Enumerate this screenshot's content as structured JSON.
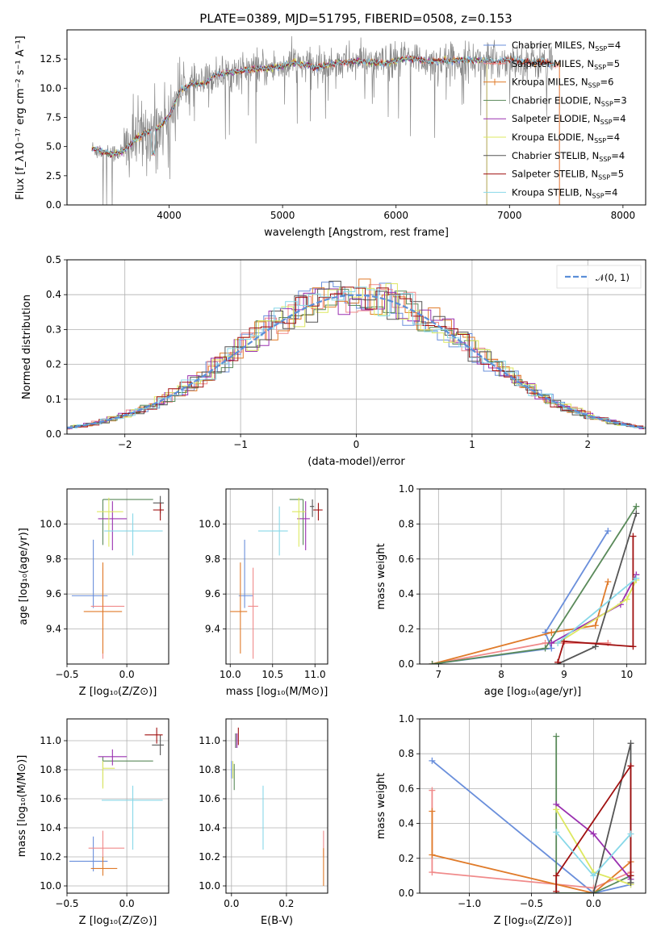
{
  "title": "PLATE=0389, MJD=51795, FIBERID=0508, z=0.153",
  "colors": {
    "Chabrier MILES": "#6a8fdb",
    "Salpeter MILES": "#f08a8a",
    "Kroupa MILES": "#e07b2a",
    "Chabrier ELODIE": "#5a8a5a",
    "Salpeter ELODIE": "#9a30b0",
    "Kroupa ELODIE": "#dde860",
    "Chabrier STELIB": "#555555",
    "Salpeter STELIB": "#a01010",
    "Kroupa STELIB": "#88d8e8",
    "data": "#888888",
    "normal": "#5b8fd8"
  },
  "chart_data": [
    {
      "id": "spectrum",
      "type": "line",
      "title": "PLATE=0389, MJD=51795, FIBERID=0508, z=0.153",
      "xlabel": "wavelength [Angstrom, rest frame]",
      "ylabel": "Flux [f_λ10⁻¹⁷ erg cm⁻² s⁻¹ A⁻¹]",
      "xlim": [
        3100,
        8200
      ],
      "ylim": [
        0,
        15
      ],
      "xticks": [
        "4000",
        "5000",
        "6000",
        "7000",
        "8000"
      ],
      "yticks": [
        "0.0",
        "2.5",
        "5.0",
        "7.5",
        "10.0",
        "12.5"
      ],
      "grid": false,
      "legend_position": "right",
      "legend": [
        {
          "label": "Chabrier MILES, N",
          "sub": "SSP",
          "tail": "=4"
        },
        {
          "label": "Salpeter MILES, N",
          "sub": "SSP",
          "tail": "=5"
        },
        {
          "label": "Kroupa MILES, N",
          "sub": "SSP",
          "tail": "=6"
        },
        {
          "label": "Chabrier ELODIE, N",
          "sub": "SSP",
          "tail": "=3"
        },
        {
          "label": "Salpeter ELODIE, N",
          "sub": "SSP",
          "tail": "=4"
        },
        {
          "label": "Kroupa ELODIE, N",
          "sub": "SSP",
          "tail": "=4"
        },
        {
          "label": "Chabrier STELIB, N",
          "sub": "SSP",
          "tail": "=4"
        },
        {
          "label": "Salpeter STELIB, N",
          "sub": "SSP",
          "tail": "=5"
        },
        {
          "label": "Kroupa STELIB, N",
          "sub": "SSP",
          "tail": "=4"
        }
      ],
      "model_continuum": {
        "x": [
          3320,
          3400,
          3500,
          3600,
          3700,
          3800,
          3900,
          4000,
          4100,
          4200,
          4300,
          4400,
          4500,
          4700,
          4900,
          5100,
          5300,
          5500,
          5700,
          5900,
          6100,
          6300,
          6500,
          6700,
          6900,
          7000,
          7100,
          7200,
          7300,
          7400
        ],
        "y": [
          4.8,
          4.6,
          4.4,
          4.6,
          5.6,
          6.2,
          6.6,
          7.6,
          9.8,
          10.4,
          10.3,
          11.1,
          11.3,
          11.6,
          11.7,
          12.2,
          11.8,
          12.2,
          12.3,
          12.1,
          12.6,
          12.3,
          12.4,
          12.4,
          12.3,
          12.5,
          12.3,
          12.2,
          12.3,
          12.0
        ]
      }
    },
    {
      "id": "residuals",
      "type": "histogram",
      "xlabel": "(data-model)/error",
      "ylabel": "Normed distribution",
      "xlim": [
        -2.5,
        2.5
      ],
      "ylim": [
        0,
        0.5
      ],
      "xticks": [
        "−2",
        "−1",
        "0",
        "1",
        "2"
      ],
      "yticks": [
        "0.0",
        "0.1",
        "0.2",
        "0.3",
        "0.4",
        "0.5"
      ],
      "grid": true,
      "legend_position": "top-right",
      "legend": [
        {
          "label": "𝒩(0, 1)"
        }
      ],
      "bin_width": 0.1
    },
    {
      "id": "age_vs_Z",
      "type": "errorbar",
      "xlabel": "Z [log₁₀(Z/Z⊙)]",
      "ylabel": "age  [log₁₀(age/yr)]",
      "xlim": [
        -0.5,
        0.35
      ],
      "ylim": [
        9.2,
        10.2
      ],
      "xticks": [
        "−0.5",
        "0.0"
      ],
      "yticks": [
        "9.4",
        "9.6",
        "9.8",
        "10.0"
      ],
      "grid": true,
      "points": [
        {
          "series": "Chabrier MILES",
          "x": -0.28,
          "y": 9.59,
          "xerr": [
            0.18,
            0.12
          ],
          "yerr": [
            0.07,
            0.32
          ]
        },
        {
          "series": "Salpeter MILES",
          "x": -0.2,
          "y": 9.53,
          "xerr": [
            0.1,
            0.18
          ],
          "yerr": [
            0.3,
            0.22
          ]
        },
        {
          "series": "Kroupa MILES",
          "x": -0.2,
          "y": 9.5,
          "xerr": [
            0.16,
            0.16
          ],
          "yerr": [
            0.24,
            0.28
          ]
        },
        {
          "series": "Chabrier ELODIE",
          "x": -0.2,
          "y": 10.14,
          "xerr": [
            0.0,
            0.42
          ],
          "yerr": [
            0.26,
            0.0
          ]
        },
        {
          "series": "Salpeter ELODIE",
          "x": -0.12,
          "y": 10.03,
          "xerr": [
            0.12,
            0.12
          ],
          "yerr": [
            0.18,
            0.1
          ]
        },
        {
          "series": "Kroupa ELODIE",
          "x": -0.15,
          "y": 10.07,
          "xerr": [
            0.1,
            0.12
          ],
          "yerr": [
            0.2,
            0.08
          ]
        },
        {
          "series": "Chabrier STELIB",
          "x": 0.28,
          "y": 10.12,
          "xerr": [
            0.06,
            0.03
          ],
          "yerr": [
            0.06,
            0.04
          ]
        },
        {
          "series": "Salpeter STELIB",
          "x": 0.28,
          "y": 10.08,
          "xerr": [
            0.06,
            0.03
          ],
          "yerr": [
            0.06,
            0.04
          ]
        },
        {
          "series": "Kroupa STELIB",
          "x": 0.05,
          "y": 9.96,
          "xerr": [
            0.24,
            0.25
          ],
          "yerr": [
            0.14,
            0.1
          ]
        }
      ]
    },
    {
      "id": "age_vs_mass",
      "type": "errorbar",
      "xlabel": "mass [log₁₀(M/M⊙)]",
      "xlim": [
        9.95,
        11.15
      ],
      "ylim": [
        9.2,
        10.2
      ],
      "xticks": [
        "10.0",
        "10.5",
        "11.0"
      ],
      "yticks": [
        "9.4",
        "9.6",
        "9.8",
        "10.0"
      ],
      "grid": true,
      "points": [
        {
          "series": "Chabrier MILES",
          "x": 10.17,
          "y": 9.59,
          "xerr": [
            0.07,
            0.1
          ],
          "yerr": [
            0.07,
            0.32
          ]
        },
        {
          "series": "Salpeter MILES",
          "x": 10.27,
          "y": 9.53,
          "xerr": [
            0.06,
            0.06
          ],
          "yerr": [
            0.3,
            0.22
          ]
        },
        {
          "series": "Kroupa MILES",
          "x": 10.12,
          "y": 9.5,
          "xerr": [
            0.12,
            0.08
          ],
          "yerr": [
            0.24,
            0.28
          ]
        },
        {
          "series": "Chabrier ELODIE",
          "x": 10.86,
          "y": 10.14,
          "xerr": [
            0.16,
            0.0
          ],
          "yerr": [
            0.26,
            0.0
          ]
        },
        {
          "series": "Salpeter ELODIE",
          "x": 10.89,
          "y": 10.03,
          "xerr": [
            0.1,
            0.05
          ],
          "yerr": [
            0.18,
            0.1
          ]
        },
        {
          "series": "Kroupa ELODIE",
          "x": 10.81,
          "y": 10.07,
          "xerr": [
            0.08,
            0.08
          ],
          "yerr": [
            0.2,
            0.08
          ]
        },
        {
          "series": "Chabrier STELIB",
          "x": 10.97,
          "y": 10.1,
          "xerr": [
            0.03,
            0.02
          ],
          "yerr": [
            0.06,
            0.04
          ]
        },
        {
          "series": "Salpeter STELIB",
          "x": 11.04,
          "y": 10.08,
          "xerr": [
            0.06,
            0.05
          ],
          "yerr": [
            0.06,
            0.04
          ]
        },
        {
          "series": "Kroupa STELIB",
          "x": 10.58,
          "y": 9.96,
          "xerr": [
            0.25,
            0.1
          ],
          "yerr": [
            0.14,
            0.14
          ]
        }
      ]
    },
    {
      "id": "massweight_vs_age",
      "type": "line",
      "xlabel": "age  [log₁₀(age/yr)]",
      "ylabel": "mass weight",
      "xlim": [
        6.7,
        10.3
      ],
      "ylim": [
        0,
        1.0
      ],
      "xticks": [
        "7",
        "8",
        "9",
        "10"
      ],
      "yticks": [
        "0.0",
        "0.2",
        "0.4",
        "0.6",
        "0.8",
        "1.0"
      ],
      "grid": true,
      "series": [
        {
          "name": "Chabrier MILES",
          "x": [
            6.9,
            8.8,
            8.7,
            9.7
          ],
          "y": [
            0.0,
            0.09,
            0.18,
            0.76
          ]
        },
        {
          "name": "Salpeter MILES",
          "x": [
            6.9,
            8.7,
            9.7
          ],
          "y": [
            0.0,
            0.12,
            0.12
          ]
        },
        {
          "name": "Kroupa MILES",
          "x": [
            6.9,
            8.8,
            9.5,
            9.7
          ],
          "y": [
            0.0,
            0.18,
            0.22,
            0.47
          ]
        },
        {
          "name": "Chabrier ELODIE",
          "x": [
            6.9,
            8.7,
            10.15
          ],
          "y": [
            0.0,
            0.09,
            0.9
          ]
        },
        {
          "name": "Salpeter ELODIE",
          "x": [
            8.8,
            9.9,
            10.15
          ],
          "y": [
            0.12,
            0.34,
            0.51
          ]
        },
        {
          "name": "Kroupa ELODIE",
          "x": [
            8.9,
            10.0,
            10.15
          ],
          "y": [
            0.12,
            0.37,
            0.48
          ]
        },
        {
          "name": "Chabrier STELIB",
          "x": [
            8.9,
            9.5,
            10.15
          ],
          "y": [
            0.0,
            0.1,
            0.86
          ]
        },
        {
          "name": "Salpeter STELIB",
          "x": [
            8.9,
            9.0,
            10.1,
            10.1
          ],
          "y": [
            0.01,
            0.13,
            0.1,
            0.73
          ]
        },
        {
          "name": "Kroupa STELIB",
          "x": [
            8.9,
            10.15
          ],
          "y": [
            0.12,
            0.49
          ]
        }
      ]
    },
    {
      "id": "mass_vs_Z",
      "type": "errorbar",
      "xlabel": "Z [log₁₀(Z/Z⊙)]",
      "ylabel": "mass [log₁₀(M/M⊙)]",
      "xlim": [
        -0.5,
        0.35
      ],
      "ylim": [
        9.95,
        11.15
      ],
      "xticks": [
        "−0.5",
        "0.0"
      ],
      "yticks": [
        "10.0",
        "10.2",
        "10.4",
        "10.6",
        "10.8",
        "11.0"
      ],
      "grid": true,
      "points": [
        {
          "series": "Chabrier MILES",
          "x": -0.28,
          "y": 10.17,
          "xerr": [
            0.2,
            0.12
          ],
          "yerr": [
            0.07,
            0.17
          ]
        },
        {
          "series": "Salpeter MILES",
          "x": -0.2,
          "y": 10.26,
          "xerr": [
            0.12,
            0.18
          ],
          "yerr": [
            0.1,
            0.12
          ]
        },
        {
          "series": "Kroupa MILES",
          "x": -0.2,
          "y": 10.12,
          "xerr": [
            0.1,
            0.12
          ],
          "yerr": [
            0.05,
            0.08
          ]
        },
        {
          "series": "Chabrier ELODIE",
          "x": -0.2,
          "y": 10.86,
          "xerr": [
            0.0,
            0.42
          ],
          "yerr": [
            0.18,
            0.03
          ]
        },
        {
          "series": "Salpeter ELODIE",
          "x": -0.12,
          "y": 10.89,
          "xerr": [
            0.12,
            0.12
          ],
          "yerr": [
            0.06,
            0.05
          ]
        },
        {
          "series": "Kroupa ELODIE",
          "x": -0.2,
          "y": 10.81,
          "xerr": [
            0.0,
            0.1
          ],
          "yerr": [
            0.14,
            0.05
          ]
        },
        {
          "series": "Chabrier STELIB",
          "x": 0.28,
          "y": 10.97,
          "xerr": [
            0.07,
            0.03
          ],
          "yerr": [
            0.07,
            0.07
          ]
        },
        {
          "series": "Salpeter STELIB",
          "x": 0.25,
          "y": 11.04,
          "xerr": [
            0.1,
            0.05
          ],
          "yerr": [
            0.06,
            0.05
          ]
        },
        {
          "series": "Kroupa STELIB",
          "x": 0.05,
          "y": 10.59,
          "xerr": [
            0.26,
            0.25
          ],
          "yerr": [
            0.34,
            0.1
          ]
        }
      ]
    },
    {
      "id": "mass_vs_ebv",
      "type": "errorbar",
      "xlabel": "E(B-V)",
      "xlim": [
        -0.02,
        0.35
      ],
      "ylim": [
        9.95,
        11.15
      ],
      "xticks": [
        "0.0",
        "0.2"
      ],
      "yticks": [
        "10.0",
        "10.2",
        "10.4",
        "10.6",
        "10.8",
        "11.0"
      ],
      "grid": true,
      "points": [
        {
          "series": "Chabrier MILES",
          "x": 0.0,
          "y": 10.8,
          "xerr": [
            0,
            0
          ],
          "yerr": [
            0.06,
            0.06
          ]
        },
        {
          "series": "Salpeter MILES",
          "x": 0.335,
          "y": 10.3,
          "xerr": [
            0,
            0
          ],
          "yerr": [
            0.1,
            0.08
          ]
        },
        {
          "series": "Kroupa MILES",
          "x": 0.335,
          "y": 10.12,
          "xerr": [
            0,
            0
          ],
          "yerr": [
            0.12,
            0.14
          ]
        },
        {
          "series": "Chabrier ELODIE",
          "x": 0.01,
          "y": 10.8,
          "xerr": [
            0,
            0
          ],
          "yerr": [
            0.14,
            0.04
          ]
        },
        {
          "series": "Salpeter ELODIE",
          "x": 0.02,
          "y": 11.0,
          "xerr": [
            0,
            0
          ],
          "yerr": [
            0.05,
            0.05
          ]
        },
        {
          "series": "Kroupa ELODIE",
          "x": 0.005,
          "y": 10.8,
          "xerr": [
            0,
            0
          ],
          "yerr": [
            0.06,
            0.06
          ]
        },
        {
          "series": "Chabrier STELIB",
          "x": 0.015,
          "y": 11.0,
          "xerr": [
            0,
            0
          ],
          "yerr": [
            0.05,
            0.05
          ]
        },
        {
          "series": "Salpeter STELIB",
          "x": 0.025,
          "y": 11.03,
          "xerr": [
            0,
            0
          ],
          "yerr": [
            0.06,
            0.06
          ]
        },
        {
          "series": "Kroupa STELIB",
          "x": 0.115,
          "y": 10.47,
          "xerr": [
            0,
            0
          ],
          "yerr": [
            0.22,
            0.22
          ]
        }
      ]
    },
    {
      "id": "massweight_vs_Z",
      "type": "line",
      "xlabel": "Z [log₁₀(Z/Z⊙)]",
      "ylabel": "mass weight",
      "xlim": [
        -1.4,
        0.42
      ],
      "ylim": [
        0,
        1.0
      ],
      "xticks": [
        "−1.0",
        "−0.5",
        "0.0"
      ],
      "yticks": [
        "0.0",
        "0.2",
        "0.4",
        "0.6",
        "0.8",
        "1.0"
      ],
      "grid": true,
      "series": [
        {
          "name": "Chabrier MILES",
          "x": [
            -1.3,
            0.0,
            0.3
          ],
          "y": [
            0.76,
            0.0,
            0.05
          ]
        },
        {
          "name": "Salpeter MILES",
          "x": [
            -1.3,
            -1.3,
            0.0,
            0.3
          ],
          "y": [
            0.59,
            0.12,
            0.03,
            0.12
          ]
        },
        {
          "name": "Kroupa MILES",
          "x": [
            -1.3,
            -1.3,
            0.0,
            0.3
          ],
          "y": [
            0.47,
            0.22,
            0.0,
            0.18
          ]
        },
        {
          "name": "Chabrier ELODIE",
          "x": [
            -0.3,
            -0.3,
            0.0,
            0.3
          ],
          "y": [
            0.9,
            0.0,
            0.0,
            0.1
          ]
        },
        {
          "name": "Salpeter ELODIE",
          "x": [
            -0.3,
            0.0,
            0.3
          ],
          "y": [
            0.51,
            0.34,
            0.08
          ]
        },
        {
          "name": "Kroupa ELODIE",
          "x": [
            -0.3,
            0.0,
            0.3
          ],
          "y": [
            0.48,
            0.12,
            0.05
          ]
        },
        {
          "name": "Chabrier STELIB",
          "x": [
            0.0,
            0.3,
            0.3
          ],
          "y": [
            0.0,
            0.86,
            0.06
          ]
        },
        {
          "name": "Salpeter STELIB",
          "x": [
            -0.3,
            -0.3,
            0.3,
            0.3
          ],
          "y": [
            0.01,
            0.1,
            0.73,
            0.1
          ]
        },
        {
          "name": "Kroupa STELIB",
          "x": [
            -0.3,
            0.0,
            0.3
          ],
          "y": [
            0.35,
            0.1,
            0.34
          ]
        }
      ]
    }
  ]
}
